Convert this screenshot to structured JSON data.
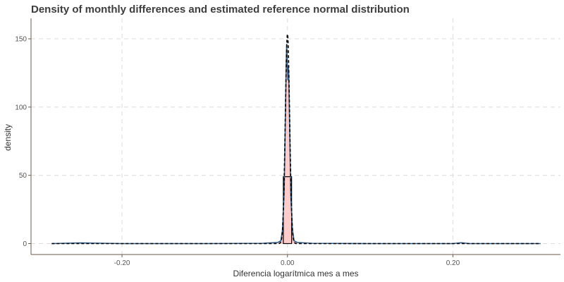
{
  "chart_data": {
    "type": "area",
    "title": "Density of monthly differences and estimated reference normal distribution",
    "xlabel": "Diferencia logarítmica mes a mes",
    "ylabel": "density",
    "xlim": [
      -0.31,
      0.33
    ],
    "ylim": [
      -8,
      165
    ],
    "x_ticks": [
      -0.2,
      0.0,
      0.2
    ],
    "x_tick_labels": [
      "-0.20",
      "0.00",
      "0.20"
    ],
    "y_ticks": [
      0,
      50,
      100,
      150
    ],
    "y_tick_labels": [
      "0",
      "50",
      "100",
      "150"
    ],
    "grid": true,
    "legend": "none",
    "histogram": {
      "bins": [
        {
          "x0": -0.005,
          "x1": 0.005,
          "density": 49
        }
      ],
      "color": "#000000"
    },
    "series": [
      {
        "kind": "observed-density",
        "color": "#2e5f8a",
        "fill": "#ffcccc",
        "x": [
          -0.285,
          -0.25,
          -0.2,
          -0.1,
          -0.03,
          -0.012,
          -0.008,
          -0.006,
          -0.004,
          -0.003,
          -0.002,
          -0.0015,
          -0.001,
          -0.0005,
          0.0,
          0.0005,
          0.001,
          0.0015,
          0.002,
          0.003,
          0.004,
          0.006,
          0.008,
          0.012,
          0.03,
          0.1,
          0.2,
          0.21,
          0.22,
          0.306
        ],
        "y": [
          0,
          0.5,
          0,
          0,
          0.2,
          0.8,
          2,
          10,
          38,
          75,
          112,
          133,
          146,
          140,
          128,
          120,
          130,
          125,
          108,
          72,
          35,
          10,
          2,
          0.8,
          0.2,
          0,
          0,
          0.6,
          0,
          0
        ]
      },
      {
        "kind": "reference-normal",
        "color": "#000000",
        "dashed": true,
        "mean": 0.0,
        "sd": 0.0026,
        "x_range": [
          -0.285,
          0.306
        ]
      }
    ]
  }
}
